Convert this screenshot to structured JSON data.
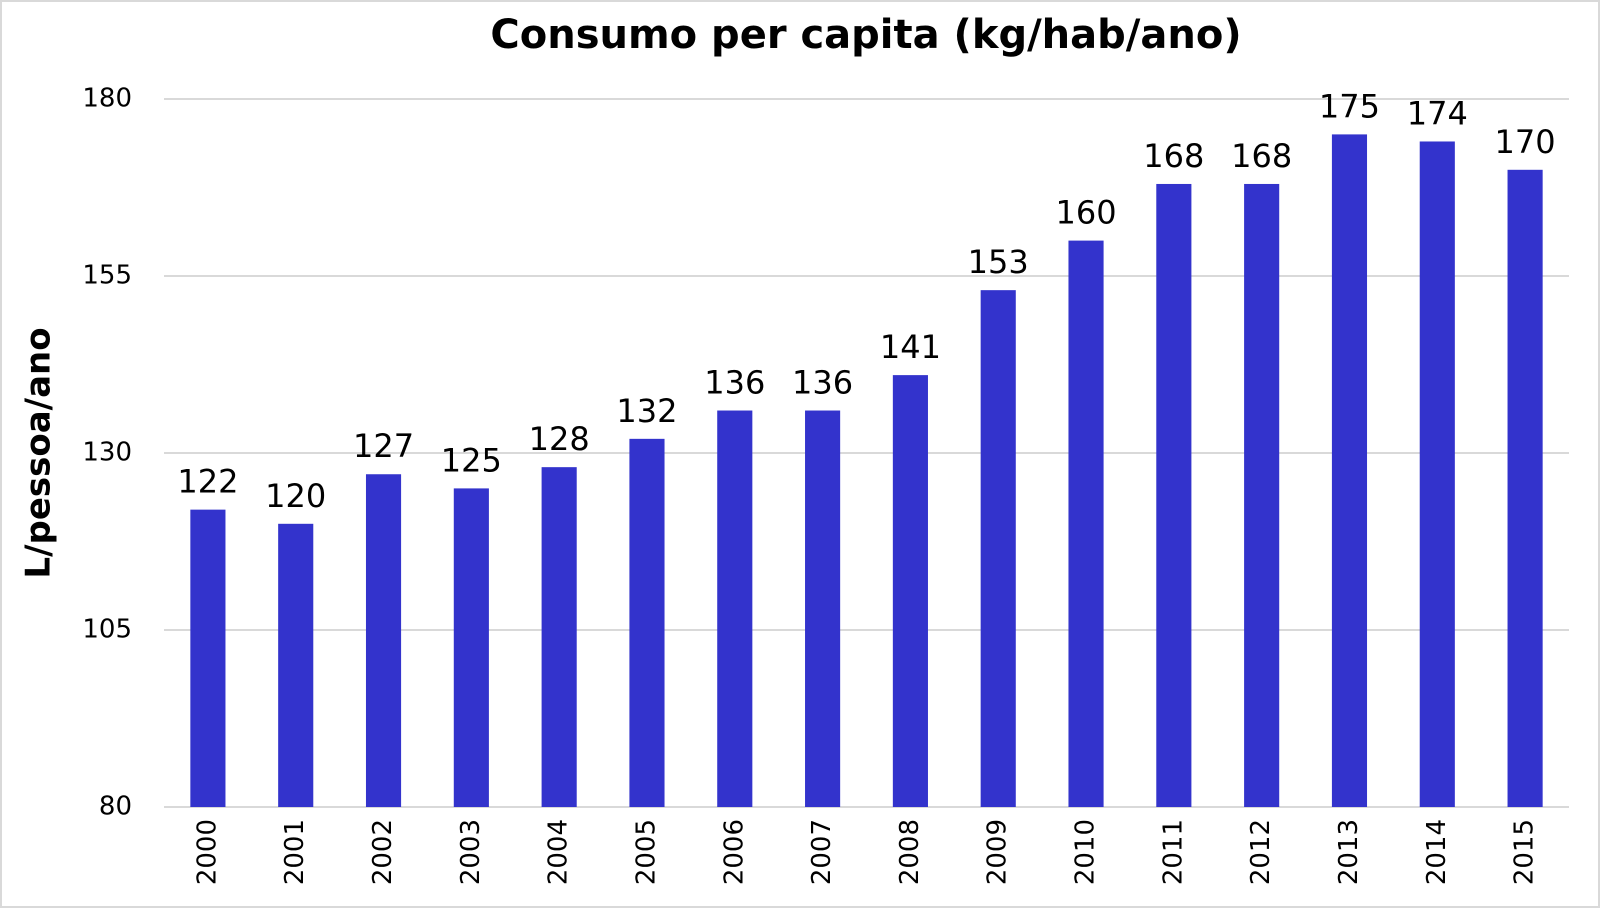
{
  "chart_data": {
    "type": "bar",
    "title": "Consumo per capita (kg/hab/ano)",
    "y_label": "L/pessoa/ano",
    "categories": [
      "2000",
      "2001",
      "2002",
      "2003",
      "2004",
      "2005",
      "2006",
      "2007",
      "2008",
      "2009",
      "2010",
      "2011",
      "2012",
      "2013",
      "2014",
      "2015"
    ],
    "values": [
      122,
      120,
      127,
      125,
      128,
      132,
      136,
      136,
      141,
      153,
      160,
      168,
      168,
      175,
      174,
      170
    ],
    "color": "#3333cc",
    "ylim": [
      80,
      180
    ],
    "yticks": [
      80,
      105,
      130,
      155,
      180
    ],
    "grid": true
  }
}
